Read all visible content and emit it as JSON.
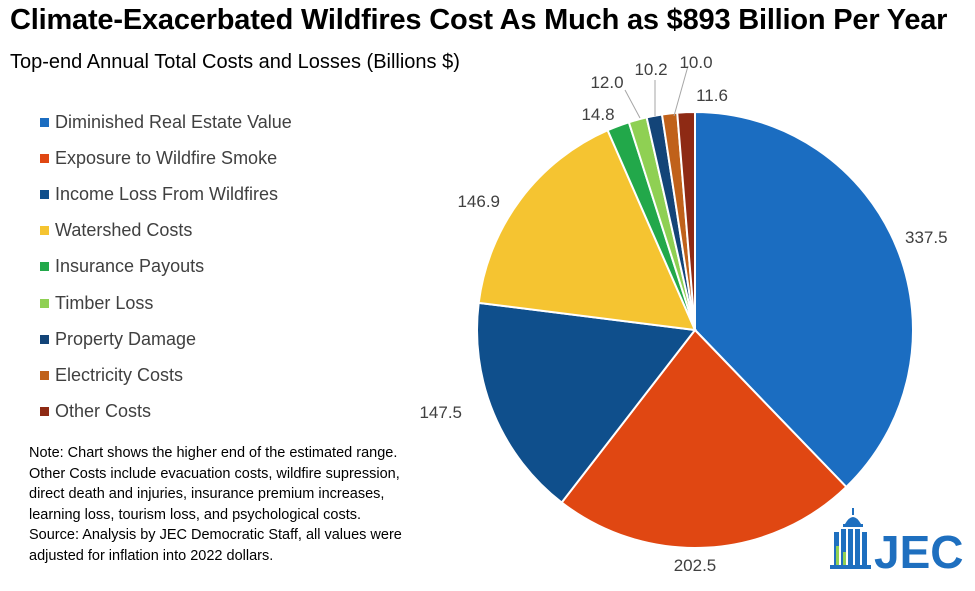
{
  "title": "Climate-Exacerbated Wildfires Cost As Much as $893 Billion Per Year",
  "subtitle": "Top-end Annual Total Costs and Losses (Billions $)",
  "chart_data": {
    "type": "pie",
    "title": "Climate-Exacerbated Wildfires Cost As Much as $893 Billion Per Year",
    "subtitle": "Top-end Annual Total Costs and Losses (Billions $)",
    "legend_position": "left",
    "categories": [
      "Diminished Real Estate Value",
      "Exposure to Wildfire Smoke",
      "Income Loss From Wildfires",
      "Watershed Costs",
      "Insurance Payouts",
      "Timber Loss",
      "Property Damage",
      "Electricity Costs",
      "Other Costs"
    ],
    "values": [
      337.5,
      202.5,
      147.5,
      146.9,
      14.8,
      12.0,
      10.2,
      10.0,
      11.6
    ],
    "data_labels": [
      "337.5",
      "202.5",
      "147.5",
      "146.9",
      "14.8",
      "12.0",
      "10.2",
      "10.0",
      "11.6"
    ],
    "colors": [
      "#1B6DC1",
      "#E04712",
      "#0F4F8C",
      "#F5C431",
      "#22A84A",
      "#8FD053",
      "#134478",
      "#C0611A",
      "#8E2A14"
    ]
  },
  "note_lines": [
    "Note: Chart shows the higher end of the estimated range.",
    "Other Costs include evacuation costs, wildfire supression,",
    "direct death and injuries, insurance premium increases,",
    "learning loss, tourism loss, and psychological costs.",
    "Source: Analysis by JEC Democratic Staff, all values were",
    "adjusted for inflation into 2022 dollars."
  ],
  "logo": {
    "text": "JEC",
    "icon": "capitol-dome-icon",
    "color": "#1E6FBF"
  }
}
